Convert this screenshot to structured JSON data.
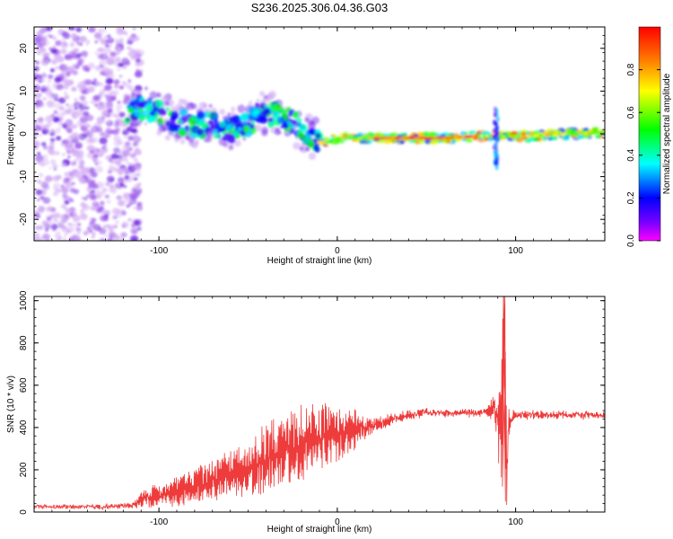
{
  "title": "S236.2025.306.04.36.G03",
  "colors": {
    "axis": "#000000",
    "snr_line": "#ee3b3b",
    "trace_core": "#ff3030",
    "scatter": "#8a2be2"
  },
  "chart_data": [
    {
      "type": "heatmap",
      "name": "spectrogram",
      "xlabel": "Height of straight line (km)",
      "ylabel": "Frequency (Hz)",
      "xlim": [
        -170,
        150
      ],
      "ylim": [
        -25,
        25
      ],
      "xticks": [
        -100,
        0,
        100
      ],
      "yticks": [
        -20,
        -10,
        0,
        10,
        20
      ],
      "trace": {
        "x": [
          -118,
          -110,
          -100,
          -90,
          -80,
          -70,
          -60,
          -50,
          -45,
          -40,
          -35,
          -30,
          -25,
          -20,
          -15,
          -10,
          -5,
          0,
          10,
          20,
          40,
          60,
          80,
          88,
          95,
          110,
          130,
          150
        ],
        "y": [
          5,
          6,
          5,
          3,
          2,
          2,
          1,
          2,
          5,
          4,
          5,
          4,
          3,
          1,
          -1,
          -2,
          -2,
          -1,
          -1,
          -1,
          -1,
          -1,
          -0.5,
          -0.5,
          -0.5,
          -0.5,
          0,
          0.3
        ]
      },
      "colorbar": {
        "label": "Normalized spectral amplitude",
        "range": [
          0,
          1
        ],
        "ticks": [
          0.0,
          0.2,
          0.4,
          0.6,
          0.8
        ]
      }
    },
    {
      "type": "line",
      "name": "snr",
      "xlabel": "Height of straight line (km)",
      "ylabel": "SNR (10 * v/v)",
      "xlim": [
        -170,
        150
      ],
      "ylim": [
        0,
        1020
      ],
      "xticks": [
        -100,
        0,
        100
      ],
      "yticks": [
        0,
        200,
        400,
        600,
        800,
        1000
      ],
      "x": [
        -170,
        -150,
        -130,
        -115,
        -110,
        -100,
        -90,
        -80,
        -70,
        -60,
        -50,
        -40,
        -30,
        -20,
        -10,
        0,
        10,
        20,
        30,
        40,
        50,
        60,
        70,
        80,
        85,
        88,
        90,
        92,
        93,
        94,
        95,
        96,
        100,
        110,
        120,
        130,
        140,
        150
      ],
      "y": [
        25,
        25,
        25,
        30,
        60,
        80,
        100,
        120,
        150,
        180,
        210,
        250,
        290,
        320,
        350,
        370,
        390,
        410,
        440,
        460,
        470,
        470,
        470,
        470,
        480,
        500,
        440,
        350,
        800,
        850,
        60,
        420,
        460,
        460,
        460,
        460,
        460,
        460
      ],
      "spike_amp": [
        0,
        0,
        8,
        10,
        40,
        55,
        70,
        85,
        100,
        110,
        130,
        170,
        200,
        200,
        170,
        130,
        100,
        40,
        25,
        20,
        15,
        15,
        15,
        15,
        30,
        100,
        200,
        300,
        450,
        400,
        200,
        80,
        20,
        15,
        15,
        15,
        15,
        15
      ]
    }
  ]
}
